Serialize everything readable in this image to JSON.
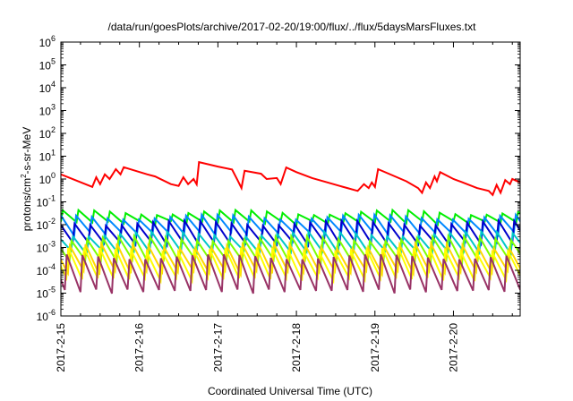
{
  "chart_data": {
    "type": "line",
    "title": "/data/run/goesPlots/archive/2017-02-20/19:00/flux/../flux/5daysMarsFluxes.txt",
    "xlabel": "Coordinated Universal Time (UTC)",
    "ylabel_base": "protons/cm",
    "ylabel_sup": "2",
    "ylabel_rest": "-s-sr-MeV",
    "x_range_days": [
      0,
      5.85
    ],
    "x_ticks": [
      {
        "day": 0,
        "label": "2017-2-15"
      },
      {
        "day": 1,
        "label": "2017-2-16"
      },
      {
        "day": 2,
        "label": "2017-2-17"
      },
      {
        "day": 3,
        "label": "2017-2-18"
      },
      {
        "day": 4,
        "label": "2017-2-19"
      },
      {
        "day": 5,
        "label": "2017-2-20"
      }
    ],
    "y_scale": "log",
    "y_range_exp": [
      -6,
      6
    ],
    "y_ticks": [
      {
        "exp": -6,
        "base": "10",
        "sup": "-6"
      },
      {
        "exp": -5,
        "base": "10",
        "sup": "-5"
      },
      {
        "exp": -4,
        "base": "10",
        "sup": "-4"
      },
      {
        "exp": -3,
        "base": "10",
        "sup": "-3"
      },
      {
        "exp": -2,
        "base": "10",
        "sup": "-2"
      },
      {
        "exp": -1,
        "base": "10",
        "sup": "-1"
      },
      {
        "exp": 0,
        "base": "10",
        "sup": "0"
      },
      {
        "exp": 1,
        "base": "10",
        "sup": "1"
      },
      {
        "exp": 2,
        "base": "10",
        "sup": "2"
      },
      {
        "exp": 3,
        "base": "10",
        "sup": "3"
      },
      {
        "exp": 4,
        "base": "10",
        "sup": "4"
      },
      {
        "exp": 5,
        "base": "10",
        "sup": "5"
      },
      {
        "exp": 6,
        "base": "10",
        "sup": "6"
      }
    ],
    "grid": false,
    "series": [
      {
        "color": "#ff0000",
        "points": [
          [
            0.0,
            1.6
          ],
          [
            0.4,
            0.45
          ],
          [
            0.45,
            1.2
          ],
          [
            0.5,
            0.6
          ],
          [
            0.56,
            1.6
          ],
          [
            0.62,
            1.0
          ],
          [
            0.7,
            2.7
          ],
          [
            0.76,
            1.6
          ],
          [
            0.8,
            3.3
          ],
          [
            1.1,
            1.6
          ],
          [
            1.2,
            1.3
          ],
          [
            1.4,
            0.6
          ],
          [
            1.5,
            0.5
          ],
          [
            1.56,
            1.2
          ],
          [
            1.62,
            0.6
          ],
          [
            1.69,
            1.0
          ],
          [
            1.73,
            0.58
          ],
          [
            1.76,
            5.5
          ],
          [
            2.0,
            3.5
          ],
          [
            2.18,
            2.6
          ],
          [
            2.25,
            0.9
          ],
          [
            2.3,
            0.4
          ],
          [
            2.34,
            2.3
          ],
          [
            2.55,
            1.7
          ],
          [
            2.62,
            1.0
          ],
          [
            2.75,
            1.1
          ],
          [
            2.8,
            0.6
          ],
          [
            2.87,
            3.2
          ],
          [
            3.0,
            2.0
          ],
          [
            3.2,
            1.1
          ],
          [
            3.4,
            0.7
          ],
          [
            3.55,
            0.5
          ],
          [
            3.65,
            0.4
          ],
          [
            3.78,
            0.3
          ],
          [
            3.86,
            0.6
          ],
          [
            3.92,
            0.4
          ],
          [
            3.96,
            0.7
          ],
          [
            4.0,
            0.45
          ],
          [
            4.04,
            2.7
          ],
          [
            4.4,
            0.8
          ],
          [
            4.55,
            0.4
          ],
          [
            4.6,
            0.25
          ],
          [
            4.65,
            0.7
          ],
          [
            4.7,
            0.4
          ],
          [
            4.76,
            1.3
          ],
          [
            4.79,
            0.8
          ],
          [
            4.83,
            2.0
          ],
          [
            5.0,
            1.0
          ],
          [
            5.1,
            0.75
          ],
          [
            5.3,
            0.4
          ],
          [
            5.45,
            0.3
          ],
          [
            5.5,
            0.2
          ],
          [
            5.55,
            0.55
          ],
          [
            5.6,
            0.25
          ],
          [
            5.66,
            0.9
          ],
          [
            5.72,
            0.6
          ],
          [
            5.75,
            1.0
          ],
          [
            5.85,
            0.7
          ]
        ]
      },
      {
        "color": "#00ee00",
        "peak": 0.035,
        "trough": 0.012,
        "period": 0.2,
        "phase": 0.0
      },
      {
        "color": "#0088ff",
        "peak": 0.022,
        "trough": 0.004,
        "period": 0.2,
        "phase": 0.03
      },
      {
        "color": "#0000cc",
        "peak": 0.012,
        "trough": 0.0015,
        "period": 0.2,
        "phase": 0.05
      },
      {
        "color": "#00c8c8",
        "peak": 0.004,
        "trough": 0.0006,
        "period": 0.2,
        "phase": 0.07
      },
      {
        "color": "#7fff00",
        "peak": 0.0025,
        "trough": 0.00025,
        "period": 0.2,
        "phase": 0.09
      },
      {
        "color": "#ffd700",
        "peak": 0.0012,
        "trough": 8e-05,
        "period": 0.2,
        "phase": 0.11
      },
      {
        "color": "#ffff00",
        "peak": 0.0008,
        "trough": 4e-05,
        "period": 0.2,
        "phase": 0.13
      },
      {
        "color": "#993366",
        "peak": 0.0004,
        "trough": 1.2e-05,
        "period": 0.2,
        "phase": 0.15
      }
    ]
  }
}
